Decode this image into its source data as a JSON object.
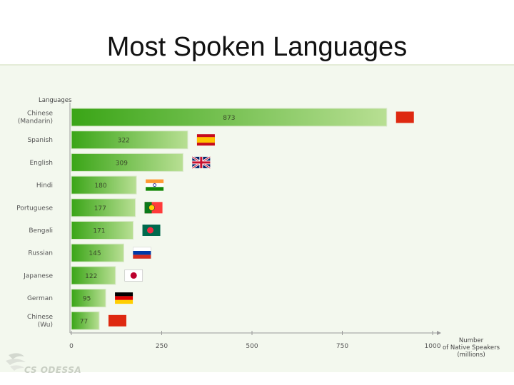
{
  "slide": {
    "title": "Most Spoken Languages",
    "watermark": "CS ODESSA"
  },
  "colors": {
    "bar_dark": "#3aa517",
    "bar_light": "#b8df93",
    "axis": "#9a9a9a",
    "panel": "#f3f8ee"
  },
  "chart_data": {
    "type": "bar",
    "orientation": "horizontal",
    "title": "",
    "ylabel": "Languages",
    "xlabel": [
      "Number",
      "of Native Speakers",
      "(millions)"
    ],
    "xlim": [
      0,
      1000
    ],
    "xticks": [
      "0",
      "250",
      "500",
      "750",
      "1000"
    ],
    "grid": false,
    "legend": "none",
    "categories": [
      [
        "Chinese",
        "(Mandarin)"
      ],
      [
        "Spanish"
      ],
      [
        "English"
      ],
      [
        "Hindi"
      ],
      [
        "Portuguese"
      ],
      [
        "Bengali"
      ],
      [
        "Russian"
      ],
      [
        "Japanese"
      ],
      [
        "German"
      ],
      [
        "Chinese",
        "(Wu)"
      ]
    ],
    "values": [
      873,
      322,
      309,
      180,
      177,
      171,
      145,
      122,
      95,
      77
    ],
    "value_labels": [
      "873",
      "322",
      "309",
      "180",
      "177",
      "171",
      "145",
      "122",
      "95",
      "77"
    ],
    "flags": [
      "china-flag",
      "spain-flag",
      "uk-flag",
      "india-flag",
      "portugal-flag",
      "bangladesh-flag",
      "russia-flag",
      "japan-flag",
      "germany-flag",
      "china-flag"
    ]
  }
}
